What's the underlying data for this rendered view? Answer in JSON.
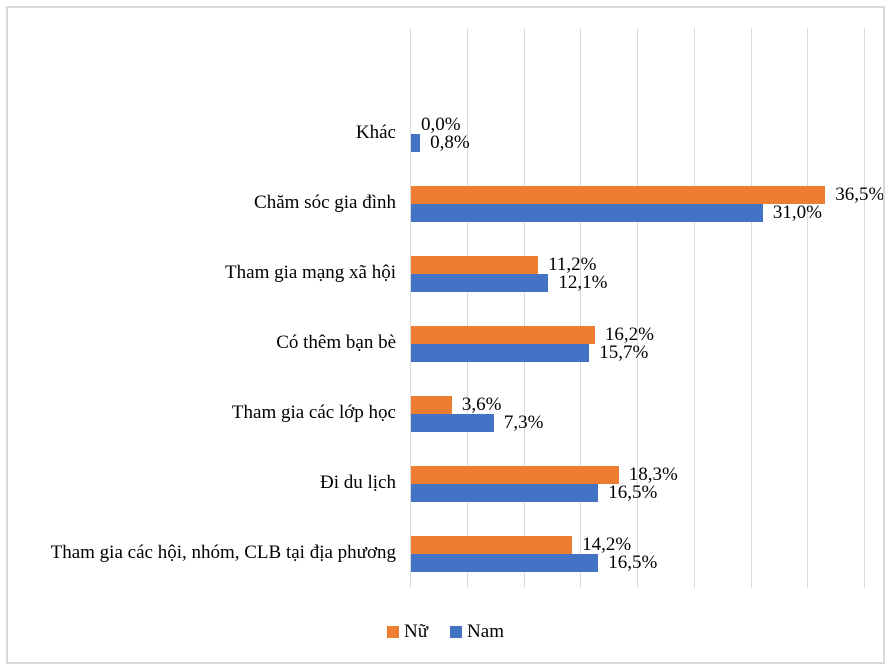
{
  "chart_data": {
    "type": "bar",
    "orientation": "horizontal",
    "title": "",
    "xlabel": "",
    "ylabel": "",
    "xlim": [
      0,
      40
    ],
    "tick_step": 5,
    "grid": true,
    "gridline_color": "#d9d9d9",
    "legend_position": "bottom-center",
    "category_order": "top-to-bottom",
    "categories": [
      "Khác",
      "Chăm sóc gia đình",
      "Tham gia mạng xã hội",
      "Có thêm bạn bè",
      "Tham gia các lớp học",
      "Đi du lịch",
      "Tham gia các hội, nhóm, CLB tại địa phương"
    ],
    "series": [
      {
        "name": "Nữ",
        "color": "#ED7D31",
        "values": [
          0.0,
          36.5,
          11.2,
          16.2,
          3.6,
          18.3,
          14.2
        ],
        "labels": [
          "0,0%",
          "36,5%",
          "11,2%",
          "16,2%",
          "3,6%",
          "18,3%",
          "14,2%"
        ]
      },
      {
        "name": "Nam",
        "color": "#4472C4",
        "values": [
          0.8,
          31.0,
          12.1,
          15.7,
          7.3,
          16.5,
          16.5
        ],
        "labels": [
          "0,8%",
          "31,0%",
          "12,1%",
          "15,7%",
          "7,3%",
          "16,5%",
          "16,5%"
        ]
      }
    ]
  }
}
